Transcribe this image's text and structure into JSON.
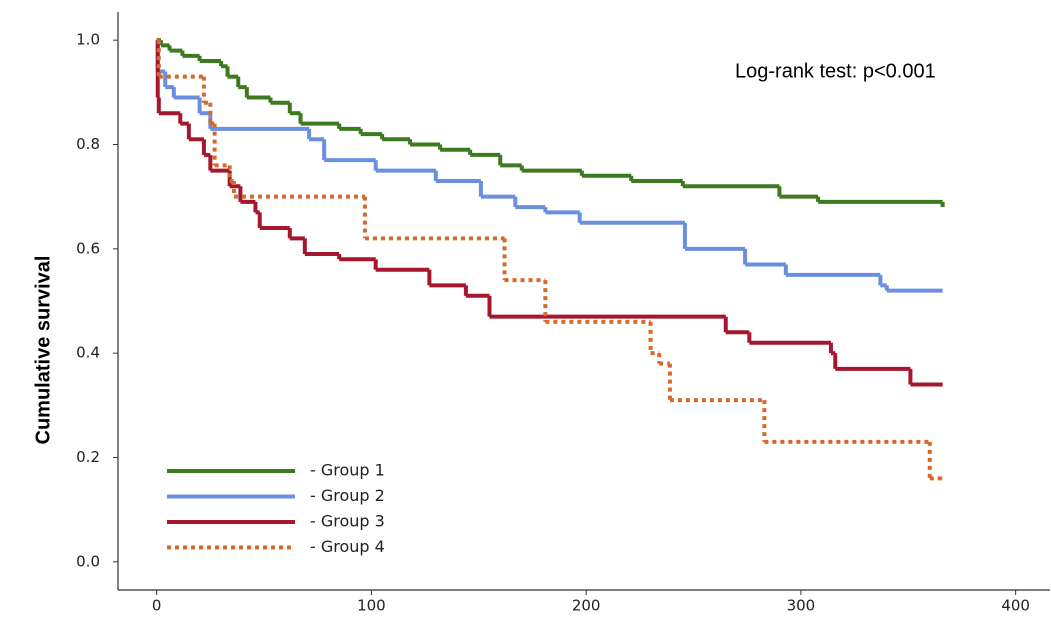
{
  "chart_data": {
    "type": "line",
    "step": true,
    "y_label": "Cumulative survival",
    "annotation": "Log-rank test: p<0.001",
    "xlim": [
      -18,
      416
    ],
    "ylim": [
      -0.054,
      1.054
    ],
    "xticks": [
      0,
      100,
      200,
      300,
      400
    ],
    "yticks": [
      {
        "value": 0,
        "label": "0.0"
      },
      0.2,
      0.4,
      0.6,
      0.8,
      {
        "value": 1,
        "label": "1.0"
      }
    ],
    "legend": "lower left",
    "series": [
      {
        "name": "- Group 1",
        "color": "#3d7a1f",
        "style": "solid",
        "x": [
          0,
          2,
          6,
          12,
          20,
          30,
          33,
          38,
          42,
          53,
          62,
          67,
          85,
          95,
          105,
          118,
          132,
          146,
          160,
          170,
          198,
          221,
          245,
          290,
          308,
          366
        ],
        "values": [
          1.0,
          0.99,
          0.98,
          0.97,
          0.96,
          0.95,
          0.93,
          0.91,
          0.89,
          0.88,
          0.86,
          0.84,
          0.83,
          0.82,
          0.81,
          0.8,
          0.79,
          0.78,
          0.76,
          0.75,
          0.74,
          0.73,
          0.72,
          0.7,
          0.69,
          0.68
        ]
      },
      {
        "name": "- Group 2",
        "color": "#6b8fe0",
        "style": "solid",
        "x": [
          0,
          0.5,
          4,
          8,
          20,
          25,
          71,
          78,
          102,
          130,
          151,
          167,
          181,
          197,
          246,
          274,
          293,
          337,
          340,
          366
        ],
        "values": [
          1.0,
          0.94,
          0.91,
          0.89,
          0.86,
          0.83,
          0.81,
          0.77,
          0.75,
          0.73,
          0.7,
          0.68,
          0.67,
          0.65,
          0.6,
          0.57,
          0.55,
          0.53,
          0.52,
          0.52
        ]
      },
      {
        "name": "- Group 3",
        "color": "#a5162f",
        "style": "solid",
        "x": [
          0,
          0.5,
          1,
          11,
          15,
          22,
          25,
          34,
          39,
          46,
          48,
          62,
          69,
          85,
          102,
          127,
          144,
          155,
          265,
          276,
          314,
          316,
          351,
          366
        ],
        "values": [
          1.0,
          0.89,
          0.86,
          0.84,
          0.81,
          0.78,
          0.75,
          0.72,
          0.69,
          0.67,
          0.64,
          0.62,
          0.59,
          0.58,
          0.56,
          0.53,
          0.51,
          0.47,
          0.44,
          0.42,
          0.4,
          0.37,
          0.34,
          0.34
        ]
      },
      {
        "name": "- Group 4",
        "color": "#d4692b",
        "style": "dotted",
        "x": [
          0,
          1,
          22,
          25,
          27,
          34,
          36,
          97,
          162,
          181,
          230,
          234,
          239,
          283,
          360,
          366
        ],
        "values": [
          1.0,
          0.93,
          0.88,
          0.84,
          0.76,
          0.73,
          0.7,
          0.62,
          0.54,
          0.46,
          0.4,
          0.38,
          0.31,
          0.23,
          0.16,
          0.16
        ]
      }
    ]
  }
}
